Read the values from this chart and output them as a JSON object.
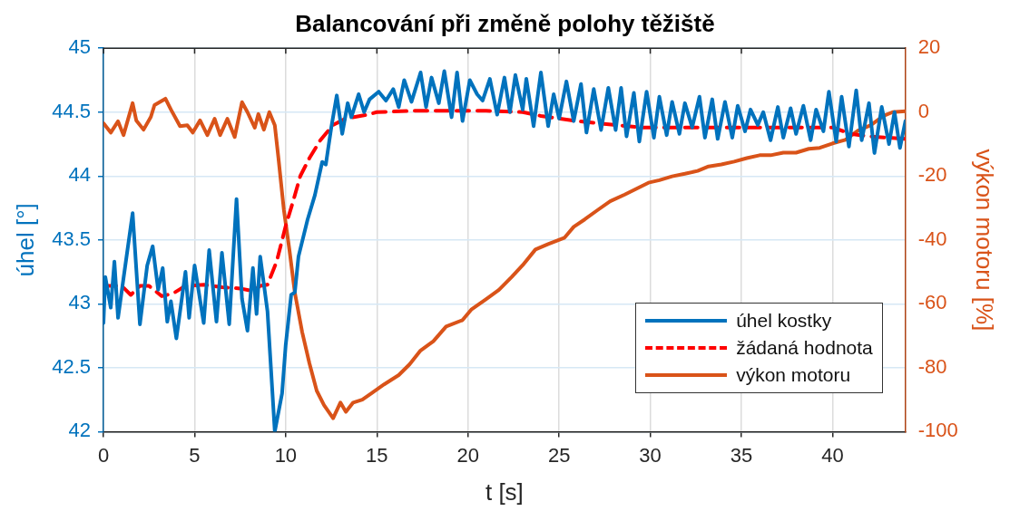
{
  "chart_data": {
    "type": "line",
    "title": "Balancování při změně polohy těžiště",
    "xlabel": "t [s]",
    "ylabel": "úhel [°]",
    "y2label": "výkon motoru [%]",
    "xlim": [
      0,
      44
    ],
    "xticks": [
      0,
      5,
      10,
      15,
      20,
      25,
      30,
      35,
      40
    ],
    "ylim": [
      42,
      45
    ],
    "yticks": [
      42,
      42.5,
      43,
      43.5,
      44,
      44.5,
      45
    ],
    "y2lim": [
      -100,
      20
    ],
    "y2ticks": [
      -100,
      -80,
      -60,
      -40,
      -20,
      0,
      20
    ],
    "grid": true,
    "legend": "bottom right",
    "marker": "none",
    "series": [
      {
        "name": "úhel kostky",
        "color": "#0072bd",
        "axis": "y",
        "line_style": "solid",
        "x": [
          0,
          0.1,
          0.4,
          0.6,
          0.8,
          1.1,
          1.6,
          2.0,
          2.4,
          2.7,
          3.0,
          3.25,
          3.5,
          3.7,
          4.0,
          4.5,
          4.7,
          5.0,
          5.5,
          5.8,
          6.2,
          6.5,
          6.9,
          7.3,
          7.6,
          7.9,
          8.2,
          8.4,
          8.6,
          9.0,
          9.4,
          9.8,
          10.0,
          10.3,
          10.5,
          10.7,
          11.2,
          11.6,
          12.0,
          12.2,
          12.5,
          12.8,
          13.1,
          13.4,
          13.6,
          14.0,
          14.3,
          14.6,
          15.1,
          15.5,
          15.9,
          16.2,
          16.5,
          16.9,
          17.4,
          17.7,
          18.0,
          18.4,
          18.7,
          19.1,
          19.4,
          19.7,
          20.1,
          20.5,
          20.8,
          21.2,
          21.6,
          22.0,
          22.3,
          22.6,
          23.0,
          23.2,
          23.6,
          24.0,
          24.4,
          24.7,
          25.0,
          25.4,
          25.8,
          26.2,
          26.5,
          26.9,
          27.3,
          27.7,
          28.1,
          28.4,
          28.7,
          29.1,
          29.4,
          29.8,
          30.2,
          30.5,
          30.9,
          31.2,
          31.6,
          31.9,
          32.3,
          32.7,
          33.0,
          33.4,
          33.7,
          34.1,
          34.5,
          34.8,
          35.2,
          35.5,
          35.9,
          36.2,
          36.6,
          37.0,
          37.3,
          37.7,
          38.0,
          38.4,
          38.8,
          39.1,
          39.5,
          39.8,
          40.2,
          40.5,
          40.9,
          41.3,
          41.6,
          42.0,
          42.3,
          42.7,
          43.1,
          43.4,
          43.7,
          44.0
        ],
        "values": [
          42.85,
          43.21,
          42.97,
          43.33,
          42.89,
          43.2,
          43.71,
          42.84,
          43.3,
          43.45,
          43.11,
          43.28,
          42.86,
          43.02,
          42.73,
          43.25,
          42.89,
          43.3,
          42.85,
          43.42,
          42.86,
          43.4,
          42.84,
          43.82,
          43.04,
          42.79,
          43.28,
          42.92,
          43.37,
          42.94,
          42.0,
          42.3,
          42.68,
          43.07,
          43.09,
          43.37,
          43.66,
          43.85,
          44.11,
          44.09,
          44.38,
          44.63,
          44.33,
          44.57,
          44.46,
          44.64,
          44.5,
          44.6,
          44.66,
          44.59,
          44.68,
          44.54,
          44.75,
          44.58,
          44.81,
          44.54,
          44.77,
          44.57,
          44.82,
          44.46,
          44.81,
          44.43,
          44.75,
          44.64,
          44.59,
          44.76,
          44.48,
          44.77,
          44.5,
          44.79,
          44.52,
          44.76,
          44.39,
          44.81,
          44.39,
          44.64,
          44.45,
          44.74,
          44.43,
          44.72,
          44.34,
          44.68,
          44.36,
          44.69,
          44.36,
          44.69,
          44.31,
          44.65,
          44.27,
          44.66,
          44.3,
          44.62,
          44.32,
          44.58,
          44.33,
          44.57,
          44.38,
          44.62,
          44.3,
          44.6,
          44.29,
          44.58,
          44.3,
          44.55,
          44.35,
          44.52,
          44.4,
          44.5,
          44.28,
          44.54,
          44.3,
          44.53,
          44.33,
          44.55,
          44.28,
          44.52,
          44.35,
          44.66,
          44.27,
          44.62,
          44.23,
          44.67,
          44.28,
          44.57,
          44.18,
          44.54,
          44.25,
          44.5,
          44.22,
          44.43
        ]
      },
      {
        "name": "žádaná hodnota",
        "color": "#ff0000",
        "axis": "y",
        "line_style": "dashed",
        "x": [
          0,
          1.0,
          1.5,
          2.0,
          2.5,
          3.2,
          3.8,
          4.5,
          5.5,
          6.5,
          7.5,
          8.2,
          8.6,
          9.0,
          9.5,
          10.0,
          10.4,
          10.8,
          11.3,
          11.9,
          12.6,
          13.3,
          14.5,
          15,
          17,
          19,
          21,
          23,
          24,
          26,
          28,
          29.5,
          31,
          33,
          35,
          37,
          39,
          40,
          41,
          42,
          44
        ],
        "values": [
          43.14,
          43.14,
          43.07,
          43.14,
          43.14,
          43.06,
          43.08,
          43.14,
          43.15,
          43.13,
          43.12,
          43.1,
          43.14,
          43.15,
          43.33,
          43.61,
          43.8,
          44.0,
          44.14,
          44.28,
          44.4,
          44.45,
          44.48,
          44.5,
          44.51,
          44.51,
          44.51,
          44.5,
          44.47,
          44.43,
          44.4,
          44.38,
          44.38,
          44.38,
          44.38,
          44.38,
          44.38,
          44.38,
          44.33,
          44.31,
          44.29
        ]
      },
      {
        "name": "výkon motoru",
        "color": "#d95319",
        "axis": "y2",
        "line_style": "solid",
        "x": [
          0,
          0.4,
          0.8,
          1.1,
          1.6,
          1.8,
          2.2,
          2.6,
          2.8,
          3.4,
          3.7,
          4.2,
          4.6,
          4.9,
          5.3,
          5.7,
          6.1,
          6.4,
          6.8,
          7.2,
          7.6,
          7.9,
          8.3,
          8.5,
          8.8,
          9.1,
          9.4,
          9.6,
          9.9,
          10.2,
          10.5,
          10.9,
          11.3,
          11.7,
          12.1,
          12.6,
          13.0,
          13.3,
          13.7,
          14.2,
          14.7,
          15.4,
          16.2,
          16.8,
          17.4,
          18.1,
          18.8,
          19.7,
          20.2,
          21.0,
          21.7,
          22.4,
          23.0,
          23.7,
          24.4,
          25.3,
          25.8,
          26.4,
          27.1,
          27.8,
          28.6,
          29.2,
          29.9,
          30.5,
          31.2,
          31.9,
          32.6,
          33.2,
          33.9,
          34.6,
          35.3,
          36.0,
          36.6,
          37.3,
          38.0,
          38.7,
          39.3,
          40.0,
          40.7,
          41.4,
          42.1,
          42.8,
          43.3,
          44.0
        ],
        "values": [
          -3.5,
          -6.4,
          -2.9,
          -7.2,
          2.8,
          -2.6,
          -5.5,
          -1.5,
          2.2,
          4.2,
          0.8,
          -4.4,
          -4.1,
          -6.4,
          -2.6,
          -7.2,
          -2.1,
          -7.2,
          -2.1,
          -7.8,
          3.1,
          0.0,
          -4.9,
          -0.6,
          -5.5,
          0.0,
          -4.1,
          -14.4,
          -30.7,
          -43.0,
          -56.5,
          -68.8,
          -78.6,
          -87.2,
          -91.7,
          -95.8,
          -90.9,
          -93.8,
          -90.9,
          -90.0,
          -88.0,
          -85.2,
          -82.3,
          -78.9,
          -74.6,
          -71.7,
          -67.1,
          -65.1,
          -61.7,
          -58.5,
          -55.6,
          -51.6,
          -47.9,
          -43.0,
          -41.3,
          -39.3,
          -35.9,
          -33.6,
          -30.7,
          -27.9,
          -25.8,
          -24.1,
          -22.1,
          -21.3,
          -20.1,
          -19.3,
          -18.4,
          -17.0,
          -16.4,
          -15.5,
          -14.4,
          -13.5,
          -13.5,
          -12.7,
          -12.7,
          -11.5,
          -11.2,
          -9.8,
          -8.7,
          -5.8,
          -4.1,
          -1.2,
          0.0,
          0.3
        ]
      }
    ]
  }
}
